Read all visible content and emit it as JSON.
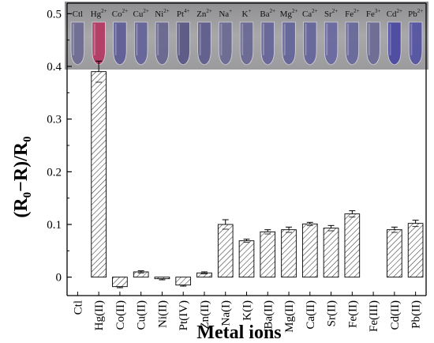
{
  "chart_data": {
    "type": "bar",
    "title": "",
    "xlabel": "Metal ions",
    "ylabel_main": "(R",
    "ylabel_sub0": "0",
    "ylabel_mid": "−R)/R",
    "ylabel_sub1": "0",
    "ylim": [
      -0.035,
      0.52
    ],
    "yticks": [
      "0",
      "0.1",
      "0.2",
      "0.3",
      "0.4",
      "0.5"
    ],
    "yticks_values": [
      0,
      0.1,
      0.2,
      0.3,
      0.4,
      0.5
    ],
    "categories": [
      "Ctl",
      "Hg(II)",
      "Co(II)",
      "Cu(II)",
      "Ni(II)",
      "Pt(IV)",
      "Zn(II)",
      "Na(I)",
      "K(I)",
      "Ba(II)",
      "Mg(II)",
      "Ca(II)",
      "Sr(II)",
      "Fe(II)",
      "Fe(III)",
      "Cd(II)",
      "Pb(II)"
    ],
    "values": [
      0,
      0.39,
      -0.018,
      0.01,
      -0.003,
      -0.015,
      0.008,
      0.1,
      0.069,
      0.086,
      0.09,
      0.101,
      0.093,
      0.12,
      0,
      0.09,
      0.102
    ],
    "errors": [
      0,
      0.02,
      0.002,
      0.002,
      0.002,
      0.002,
      0.002,
      0.009,
      0.003,
      0.004,
      0.005,
      0.003,
      0.005,
      0.006,
      0,
      0.005,
      0.006
    ],
    "bar_pattern": "diagonal-hatch",
    "bar_color": "#333333",
    "grid": false,
    "inset_photo": {
      "labels": [
        {
          "base": "Ctl",
          "sup": ""
        },
        {
          "base": "Hg",
          "sup": "2+"
        },
        {
          "base": "Co",
          "sup": "2+"
        },
        {
          "base": "Cu",
          "sup": "2+"
        },
        {
          "base": "Ni",
          "sup": "2+"
        },
        {
          "base": "Pt",
          "sup": "4+"
        },
        {
          "base": "Zn",
          "sup": "2+"
        },
        {
          "base": "Na",
          "sup": "+"
        },
        {
          "base": "K",
          "sup": "+"
        },
        {
          "base": "Ba",
          "sup": "2+"
        },
        {
          "base": "Mg",
          "sup": "2+"
        },
        {
          "base": "Ca",
          "sup": "2+"
        },
        {
          "base": "Sr",
          "sup": "2+"
        },
        {
          "base": "Fe",
          "sup": "2+"
        },
        {
          "base": "Fe",
          "sup": "3+"
        },
        {
          "base": "Cd",
          "sup": "2+"
        },
        {
          "base": "Pb",
          "sup": "2+"
        }
      ],
      "tube_colors": [
        "#6f6d93",
        "#b43b63",
        "#5f5e98",
        "#66649a",
        "#6a6890",
        "#5c5a86",
        "#605e8c",
        "#6c6b93",
        "#6b6a95",
        "#676699",
        "#66659a",
        "#67669c",
        "#6a6aa0",
        "#6a6a9c",
        "#6e6c94",
        "#4c4aa0",
        "#5655a2"
      ],
      "background": "#a3a3a6"
    }
  }
}
